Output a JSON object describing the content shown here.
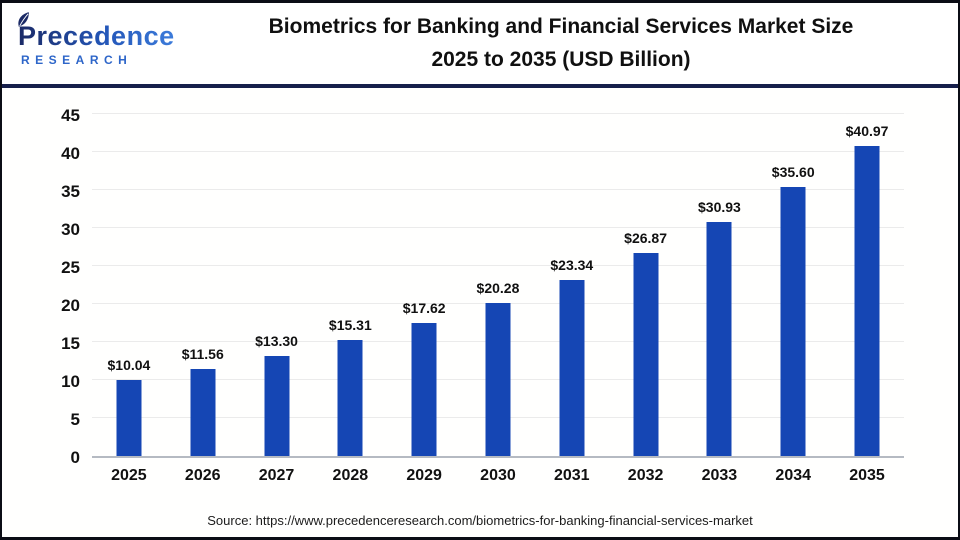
{
  "header": {
    "logo": {
      "name": "Precedence",
      "sub": "RESEARCH"
    },
    "title_line1": "Biometrics for Banking and Financial Services Market Size",
    "title_line2": "2025 to 2035 (USD Billion)"
  },
  "chart_data": {
    "type": "bar",
    "title": "Biometrics for Banking and Financial Services Market Size 2025 to 2035 (USD Billion)",
    "categories": [
      "2025",
      "2026",
      "2027",
      "2028",
      "2029",
      "2030",
      "2031",
      "2032",
      "2033",
      "2034",
      "2035"
    ],
    "values": [
      10.04,
      11.56,
      13.3,
      15.31,
      17.62,
      20.28,
      23.34,
      26.87,
      30.93,
      35.6,
      40.97
    ],
    "value_labels": [
      "$10.04",
      "$11.56",
      "$13.30",
      "$15.31",
      "$17.62",
      "$20.28",
      "$23.34",
      "$26.87",
      "$30.93",
      "$35.60",
      "$40.97"
    ],
    "unit": "USD Billion",
    "xlabel": "",
    "ylabel": "",
    "ylim": [
      0,
      45
    ],
    "yticks": [
      0,
      5,
      10,
      15,
      20,
      25,
      30,
      35,
      40,
      45
    ],
    "grid": true,
    "legend": null,
    "bar_color": "#1546b4"
  },
  "footer": {
    "source": "Source: https://www.precedenceresearch.com/biometrics-for-banking-financial-services-market"
  },
  "colors": {
    "bar_blue": "#1546b4",
    "header_divider_navy": "#161f4b",
    "frame_border": "#0b0d15",
    "gridline": "#ebebeb",
    "axis_line": "#b5bac2",
    "logo_navy": "#1b2a66",
    "logo_blue": "#3d7cdb",
    "research_blue": "#2e66c9",
    "text": "#111111"
  }
}
